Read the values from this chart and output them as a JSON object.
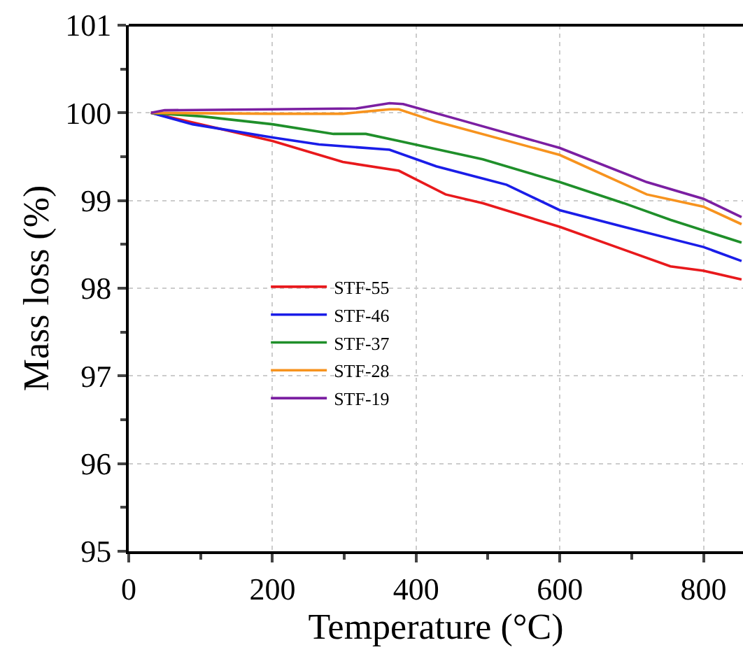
{
  "chart_data": {
    "type": "line",
    "xlabel": "Temperature (°C)",
    "ylabel": "Mass loss (%)",
    "xlim": [
      0,
      855
    ],
    "ylim": [
      95,
      101
    ],
    "xticks": [
      0,
      200,
      400,
      600,
      800
    ],
    "yticks": [
      95,
      96,
      97,
      98,
      99,
      100,
      101
    ],
    "grid": true,
    "legend": "left",
    "marker": "none",
    "line_style": "solid",
    "series": [
      {
        "name": "STF-55",
        "color": "#e8191c",
        "x": [
          31,
          200,
          298,
          376,
          441,
          493,
          600,
          689,
          754,
          800,
          853
        ],
        "values": [
          100,
          99.68,
          99.44,
          99.34,
          99.07,
          98.97,
          98.7,
          98.44,
          98.25,
          98.2,
          98.1
        ]
      },
      {
        "name": "STF-46",
        "color": "#1a1de8",
        "x": [
          31,
          89,
          200,
          265,
          363,
          428,
          526,
          600,
          689,
          800,
          853
        ],
        "values": [
          100,
          99.87,
          99.72,
          99.64,
          99.58,
          99.39,
          99.18,
          98.89,
          98.7,
          98.47,
          98.31
        ]
      },
      {
        "name": "STF-37",
        "color": "#1f8f2a",
        "x": [
          31,
          102,
          200,
          285,
          330,
          376,
          493,
          600,
          689,
          754,
          853
        ],
        "values": [
          100,
          99.96,
          99.87,
          99.76,
          99.76,
          99.68,
          99.47,
          99.21,
          98.97,
          98.78,
          98.52
        ]
      },
      {
        "name": "STF-28",
        "color": "#f7931e",
        "x": [
          31,
          200,
          298,
          363,
          376,
          428,
          600,
          721,
          800,
          853
        ],
        "values": [
          100,
          99.99,
          99.99,
          100.04,
          100.04,
          99.9,
          99.52,
          99.07,
          98.93,
          98.73
        ]
      },
      {
        "name": "STF-19",
        "color": "#7b1fa2",
        "x": [
          31,
          50,
          200,
          317,
          363,
          382,
          461,
          600,
          721,
          800,
          853
        ],
        "values": [
          100,
          100.03,
          100.04,
          100.05,
          100.11,
          100.1,
          99.92,
          99.6,
          99.21,
          99.02,
          98.81
        ]
      }
    ]
  }
}
